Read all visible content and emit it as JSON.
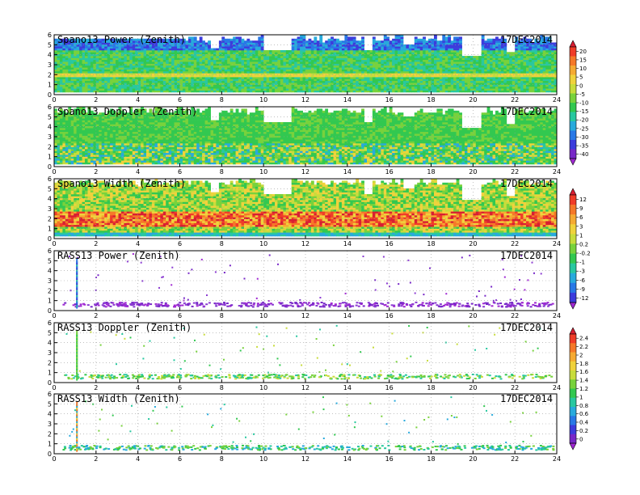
{
  "chart_data": [
    {
      "type": "heatmap",
      "title": "Spano13 Power (Zenith)",
      "date": "17DEC2014",
      "x_ticks": [
        "0",
        "2",
        "4",
        "6",
        "8",
        "10",
        "12",
        "14",
        "16",
        "18",
        "20",
        "22",
        "24"
      ],
      "y_ticks": [
        "0",
        "1",
        "2",
        "3",
        "4",
        "5",
        "6"
      ],
      "xlim": [
        0,
        24
      ],
      "ylim": [
        0,
        6
      ],
      "grid": true,
      "colorbar_group": 0
    },
    {
      "type": "heatmap",
      "title": "Spano13 Doppler (Zenith)",
      "date": "17DEC2014",
      "x_ticks": [
        "0",
        "2",
        "4",
        "6",
        "8",
        "10",
        "12",
        "14",
        "16",
        "18",
        "20",
        "22",
        "24"
      ],
      "y_ticks": [
        "0",
        "1",
        "2",
        "3",
        "4",
        "5",
        "6"
      ],
      "xlim": [
        0,
        24
      ],
      "ylim": [
        0,
        6
      ],
      "grid": true,
      "colorbar_group": 0
    },
    {
      "type": "heatmap",
      "title": "Spano13 Width (Zenith)",
      "date": "17DEC2014",
      "x_ticks": [
        "0",
        "2",
        "4",
        "6",
        "8",
        "10",
        "12",
        "14",
        "16",
        "18",
        "20",
        "22",
        "24"
      ],
      "y_ticks": [
        "0",
        "1",
        "2",
        "3",
        "4",
        "5",
        "6"
      ],
      "xlim": [
        0,
        24
      ],
      "ylim": [
        0,
        6
      ],
      "grid": true,
      "colorbar_group": 1
    },
    {
      "type": "scatter",
      "title": "RASS13 Power (Zenith)",
      "date": "17DEC2014",
      "x_ticks": [
        "0",
        "2",
        "4",
        "6",
        "8",
        "10",
        "12",
        "14",
        "16",
        "18",
        "20",
        "22",
        "24"
      ],
      "y_ticks": [
        "0",
        "1",
        "2",
        "3",
        "4",
        "5",
        "6"
      ],
      "xlim": [
        0,
        24
      ],
      "ylim": [
        0,
        6
      ],
      "grid": true,
      "colorbar_group": 1
    },
    {
      "type": "scatter",
      "title": "RASS13 Doppler (Zenith)",
      "date": "17DEC2014",
      "x_ticks": [
        "0",
        "2",
        "4",
        "6",
        "8",
        "10",
        "12",
        "14",
        "16",
        "18",
        "20",
        "22",
        "24"
      ],
      "y_ticks": [
        "0",
        "1",
        "2",
        "3",
        "4",
        "5",
        "6"
      ],
      "xlim": [
        0,
        24
      ],
      "ylim": [
        0,
        6
      ],
      "grid": true,
      "colorbar_group": 2
    },
    {
      "type": "scatter",
      "title": "RASS13 Width (Zenith)",
      "date": "17DEC2014",
      "x_ticks": [
        "0",
        "2",
        "4",
        "6",
        "8",
        "10",
        "12",
        "14",
        "16",
        "18",
        "20",
        "22",
        "24"
      ],
      "y_ticks": [
        "0",
        "1",
        "2",
        "3",
        "4",
        "5",
        "6"
      ],
      "xlim": [
        0,
        24
      ],
      "ylim": [
        0,
        6
      ],
      "grid": true,
      "colorbar_group": 2
    }
  ],
  "colorbars": [
    {
      "labels": [
        "20",
        "15",
        "10",
        "5",
        "0",
        "-5",
        "-10",
        "-15",
        "-20",
        "-25",
        "-30",
        "-35",
        "-40"
      ],
      "colors": [
        "#d81e32",
        "#f03c28",
        "#f57828",
        "#f5aa32",
        "#f0d23c",
        "#c8dc3c",
        "#78d23c",
        "#32c850",
        "#28c8a0",
        "#28aadc",
        "#2878e6",
        "#3c3cdc",
        "#7828c8",
        "#a028d2"
      ]
    },
    {
      "labels": [
        "12",
        "9",
        "6",
        "3",
        "1",
        "0.2",
        "-0.2",
        "-1",
        "-3",
        "-6",
        "-9",
        "-12"
      ],
      "colors": [
        "#d81e32",
        "#f03c28",
        "#f57828",
        "#f5aa32",
        "#f0d23c",
        "#c8dc3c",
        "#78d23c",
        "#32c850",
        "#28c8a0",
        "#28aadc",
        "#2878e6",
        "#3c3cdc",
        "#a028d2"
      ]
    },
    {
      "labels": [
        "2.4",
        "2.2",
        "2",
        "1.8",
        "1.6",
        "1.4",
        "1.2",
        "1",
        "0.8",
        "0.6",
        "0.4",
        "0.2",
        "0"
      ],
      "colors": [
        "#d81e32",
        "#f03c28",
        "#f57828",
        "#f5aa32",
        "#f0d23c",
        "#c8dc3c",
        "#78d23c",
        "#32c850",
        "#28c8a0",
        "#28aadc",
        "#2878e6",
        "#3c3cdc",
        "#7828c8",
        "#a028d2"
      ]
    }
  ]
}
